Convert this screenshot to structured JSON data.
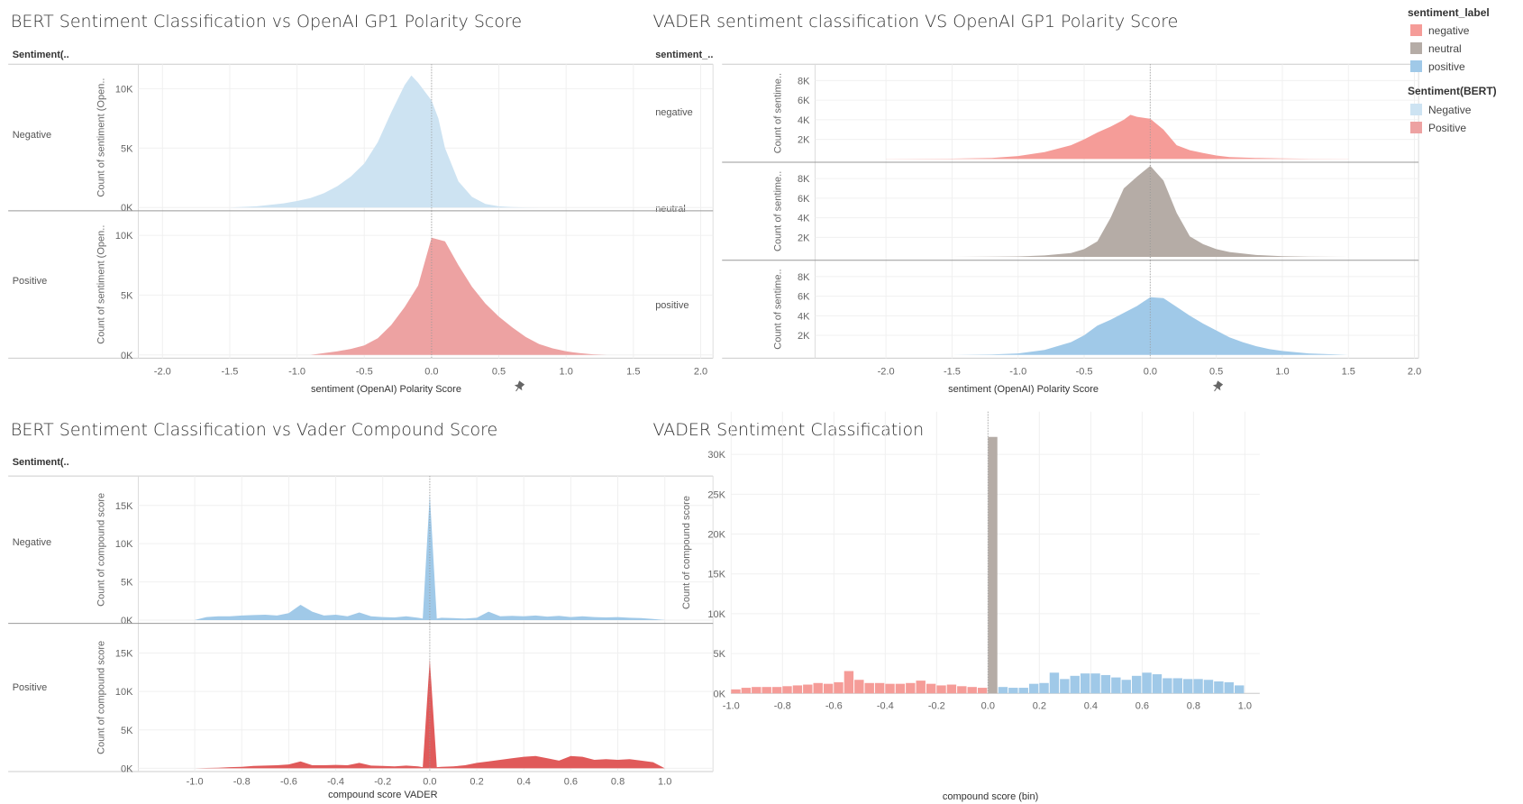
{
  "titles": {
    "q1": "BERT Sentiment Classification vs OpenAI GP1 Polarity Score",
    "q2": "VADER sentiment classification VS OpenAI GP1 Polarity Score",
    "q3": "BERT Sentiment Classification vs Vader Compound Score",
    "q4": "VADER Sentiment Classification"
  },
  "legend": {
    "sentiment_label": {
      "title": "sentiment_label",
      "items": [
        {
          "label": "negative",
          "color": "#f59c98"
        },
        {
          "label": "neutral",
          "color": "#b5aca6"
        },
        {
          "label": "positive",
          "color": "#a0c9e8"
        }
      ]
    },
    "bert": {
      "title": "Sentiment(BERT)",
      "items": [
        {
          "label": "Negative",
          "color": "#cde3f2"
        },
        {
          "label": "Positive",
          "color": "#eda2a2"
        }
      ]
    }
  },
  "chart_data": [
    {
      "id": "q1",
      "type": "area",
      "title": "BERT Sentiment Classification vs OpenAI GP1 Polarity Score",
      "row_header": "Sentiment(..",
      "xlabel": "sentiment (OpenAI) Polarity Score",
      "ylabel": "Count of sentiment (Open..",
      "xlim": [
        -2.1,
        2.0
      ],
      "xticks": [
        "-2.0",
        "-1.5",
        "-1.0",
        "-0.5",
        "0.0",
        "0.5",
        "1.0",
        "1.5",
        "2.0"
      ],
      "ylim": [
        0,
        11500
      ],
      "yticks": [
        0,
        5000,
        10000
      ],
      "ytick_labels": [
        "0K",
        "5K",
        "10K"
      ],
      "grid": true,
      "series": [
        {
          "name": "Negative",
          "color": "#cde3f2",
          "x": [
            -1.5,
            -1.3,
            -1.1,
            -1.0,
            -0.9,
            -0.8,
            -0.7,
            -0.6,
            -0.5,
            -0.4,
            -0.3,
            -0.2,
            -0.15,
            -0.1,
            0.0,
            0.05,
            0.1,
            0.2,
            0.3,
            0.4,
            0.5,
            0.6,
            0.7,
            0.8
          ],
          "values": [
            0,
            100,
            350,
            550,
            800,
            1200,
            1800,
            2600,
            3700,
            5500,
            8000,
            10300,
            11100,
            10500,
            9000,
            7500,
            5000,
            2200,
            900,
            300,
            100,
            30,
            10,
            0
          ]
        },
        {
          "name": "Positive",
          "color": "#eda2a2",
          "x": [
            -0.9,
            -0.8,
            -0.7,
            -0.6,
            -0.5,
            -0.4,
            -0.3,
            -0.2,
            -0.1,
            0.0,
            0.1,
            0.2,
            0.3,
            0.4,
            0.5,
            0.6,
            0.7,
            0.8,
            0.9,
            1.0,
            1.1,
            1.2,
            1.3
          ],
          "values": [
            0,
            150,
            300,
            500,
            800,
            1400,
            2500,
            4000,
            5800,
            9800,
            9500,
            7500,
            5700,
            4300,
            3200,
            2300,
            1500,
            900,
            550,
            300,
            150,
            50,
            0
          ]
        }
      ]
    },
    {
      "id": "q2",
      "type": "area",
      "title": "VADER sentiment classification VS OpenAI GP1 Polarity Score",
      "row_header": "sentiment_..",
      "xlabel": "sentiment (OpenAI) Polarity Score",
      "ylabel": "Count of sentime..",
      "xlim": [
        -2.2,
        2.0
      ],
      "xticks": [
        "-2.0",
        "-1.5",
        "-1.0",
        "-0.5",
        "0.0",
        "0.5",
        "1.0",
        "1.5",
        "2.0"
      ],
      "ylim": [
        0,
        9000
      ],
      "yticks": [
        2000,
        4000,
        6000,
        8000
      ],
      "ytick_labels": [
        "2K",
        "4K",
        "6K",
        "8K"
      ],
      "grid": true,
      "series": [
        {
          "name": "negative",
          "color": "#f59c98",
          "x": [
            -2.0,
            -1.5,
            -1.2,
            -1.0,
            -0.8,
            -0.6,
            -0.5,
            -0.4,
            -0.3,
            -0.2,
            -0.15,
            -0.1,
            0.0,
            0.1,
            0.2,
            0.3,
            0.4,
            0.5,
            0.6,
            0.8,
            1.0,
            1.2,
            1.5
          ],
          "values": [
            0,
            30,
            100,
            300,
            700,
            1400,
            2000,
            2700,
            3300,
            4000,
            4500,
            4300,
            4100,
            3000,
            1400,
            900,
            600,
            350,
            200,
            100,
            50,
            20,
            0
          ]
        },
        {
          "name": "neutral",
          "color": "#b5aca6",
          "x": [
            -1.5,
            -1.2,
            -1.0,
            -0.8,
            -0.6,
            -0.5,
            -0.4,
            -0.3,
            -0.2,
            -0.1,
            0.0,
            0.1,
            0.2,
            0.3,
            0.4,
            0.5,
            0.6,
            0.8,
            1.0,
            1.2,
            1.5
          ],
          "values": [
            0,
            20,
            50,
            150,
            400,
            800,
            1600,
            4000,
            7000,
            8200,
            9300,
            7800,
            4500,
            2100,
            1300,
            800,
            500,
            200,
            80,
            30,
            0
          ]
        },
        {
          "name": "positive",
          "color": "#a0c9e8",
          "x": [
            -1.5,
            -1.2,
            -1.0,
            -0.8,
            -0.6,
            -0.5,
            -0.4,
            -0.3,
            -0.2,
            -0.1,
            0.0,
            0.1,
            0.2,
            0.3,
            0.4,
            0.5,
            0.6,
            0.7,
            0.8,
            0.9,
            1.0,
            1.2,
            1.5
          ],
          "values": [
            0,
            50,
            150,
            500,
            1300,
            2000,
            3000,
            3600,
            4300,
            5000,
            5900,
            5800,
            4900,
            4000,
            3200,
            2500,
            1800,
            1300,
            900,
            600,
            400,
            150,
            0
          ]
        }
      ]
    },
    {
      "id": "q3",
      "type": "area",
      "title": "BERT Sentiment Classification vs Vader Compound Score",
      "row_header": "Sentiment(..",
      "xlabel": "compound score VADER",
      "ylabel": "Count of compound score",
      "xlim": [
        -1.1,
        1.1
      ],
      "xticks": [
        "-1.0",
        "-0.8",
        "-0.6",
        "-0.4",
        "-0.2",
        "0.0",
        "0.2",
        "0.4",
        "0.6",
        "0.8",
        "1.0"
      ],
      "ylim": [
        0,
        18000
      ],
      "yticks": [
        0,
        5000,
        10000,
        15000
      ],
      "ytick_labels": [
        "0K",
        "5K",
        "10K",
        "15K"
      ],
      "grid": true,
      "series": [
        {
          "name": "Negative",
          "color": "#a0c9e8",
          "x": [
            -1.0,
            -0.95,
            -0.9,
            -0.85,
            -0.8,
            -0.75,
            -0.7,
            -0.65,
            -0.6,
            -0.55,
            -0.5,
            -0.45,
            -0.4,
            -0.35,
            -0.3,
            -0.25,
            -0.2,
            -0.15,
            -0.1,
            -0.05,
            -0.03,
            0.0,
            0.03,
            0.05,
            0.1,
            0.15,
            0.2,
            0.25,
            0.3,
            0.35,
            0.4,
            0.45,
            0.5,
            0.55,
            0.6,
            0.65,
            0.7,
            0.75,
            0.8,
            0.85,
            0.9,
            0.95,
            1.0
          ],
          "values": [
            0,
            400,
            500,
            500,
            600,
            650,
            700,
            600,
            900,
            2000,
            1100,
            600,
            700,
            500,
            1000,
            500,
            400,
            350,
            500,
            300,
            200,
            16500,
            200,
            300,
            250,
            200,
            300,
            1100,
            500,
            550,
            500,
            600,
            450,
            550,
            400,
            500,
            400,
            350,
            400,
            300,
            250,
            150,
            0
          ]
        },
        {
          "name": "Positive",
          "color": "#e05a5a",
          "x": [
            -1.0,
            -0.95,
            -0.9,
            -0.85,
            -0.8,
            -0.75,
            -0.7,
            -0.65,
            -0.6,
            -0.55,
            -0.5,
            -0.45,
            -0.4,
            -0.35,
            -0.3,
            -0.25,
            -0.2,
            -0.15,
            -0.1,
            -0.05,
            -0.03,
            0.0,
            0.03,
            0.05,
            0.1,
            0.15,
            0.2,
            0.25,
            0.3,
            0.35,
            0.4,
            0.45,
            0.5,
            0.55,
            0.6,
            0.65,
            0.7,
            0.75,
            0.8,
            0.85,
            0.9,
            0.95,
            1.0
          ],
          "values": [
            0,
            50,
            80,
            150,
            200,
            300,
            350,
            400,
            500,
            900,
            400,
            400,
            450,
            400,
            700,
            350,
            300,
            250,
            350,
            250,
            150,
            14200,
            150,
            200,
            250,
            400,
            700,
            900,
            1100,
            1300,
            1500,
            1600,
            1300,
            1000,
            1600,
            1500,
            1100,
            1200,
            1100,
            1200,
            1000,
            800,
            0
          ]
        }
      ]
    },
    {
      "id": "q4",
      "type": "bar",
      "title": "VADER Sentiment Classification",
      "xlabel": "compound score (bin)",
      "ylabel": "Count of compound score",
      "xlim": [
        -1.05,
        1.05
      ],
      "xticks": [
        "-1.0",
        "-0.8",
        "-0.6",
        "-0.4",
        "-0.2",
        "0.0",
        "0.2",
        "0.4",
        "0.6",
        "0.8",
        "1.0"
      ],
      "ylim": [
        0,
        33000
      ],
      "yticks": [
        0,
        5000,
        10000,
        15000,
        20000,
        25000,
        30000
      ],
      "ytick_labels": [
        "0K",
        "5K",
        "10K",
        "15K",
        "20K",
        "25K",
        "30K"
      ],
      "grid": true,
      "bin_width": 0.04,
      "series": [
        {
          "name": "negative",
          "color": "#f59c98",
          "bins": [
            -1.0,
            -0.96,
            -0.92,
            -0.88,
            -0.84,
            -0.8,
            -0.76,
            -0.72,
            -0.68,
            -0.64,
            -0.6,
            -0.56,
            -0.52,
            -0.48,
            -0.44,
            -0.4,
            -0.36,
            -0.32,
            -0.28,
            -0.24,
            -0.2,
            -0.16,
            -0.12,
            -0.08,
            -0.04
          ],
          "values": [
            500,
            700,
            800,
            800,
            800,
            900,
            1000,
            1100,
            1300,
            1200,
            1400,
            2800,
            1700,
            1300,
            1300,
            1200,
            1200,
            1300,
            1600,
            1200,
            1000,
            1100,
            900,
            800,
            700
          ]
        },
        {
          "name": "neutral",
          "color": "#b5aca6",
          "bins": [
            0.0
          ],
          "values": [
            32200
          ]
        },
        {
          "name": "positive",
          "color": "#a0c9e8",
          "bins": [
            0.04,
            0.08,
            0.12,
            0.16,
            0.2,
            0.24,
            0.28,
            0.32,
            0.36,
            0.4,
            0.44,
            0.48,
            0.52,
            0.56,
            0.6,
            0.64,
            0.68,
            0.72,
            0.76,
            0.8,
            0.84,
            0.88,
            0.92,
            0.96
          ],
          "values": [
            800,
            700,
            700,
            1200,
            1300,
            2600,
            1800,
            2200,
            2500,
            2500,
            2300,
            2000,
            1700,
            2200,
            2600,
            2400,
            1900,
            1900,
            1800,
            1800,
            1700,
            1500,
            1400,
            1000
          ]
        }
      ]
    }
  ]
}
